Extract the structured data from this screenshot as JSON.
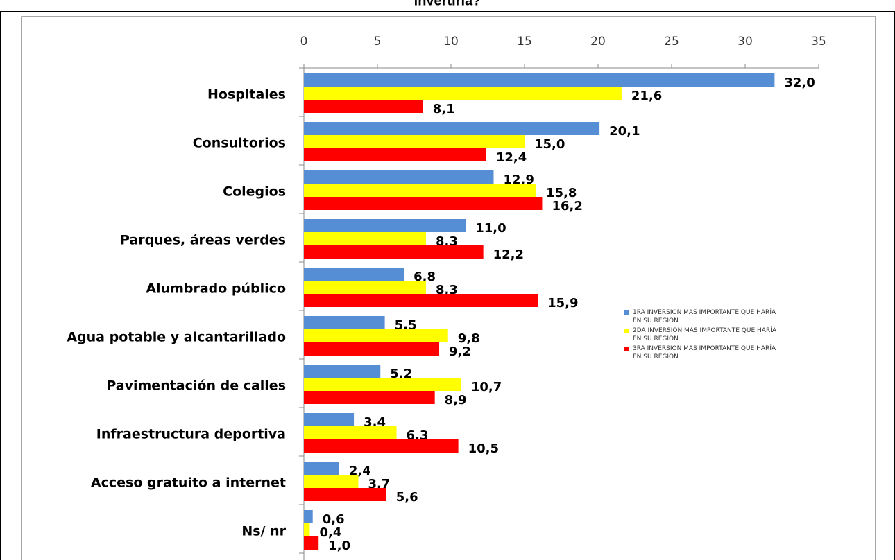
{
  "chart_data": {
    "type": "bar",
    "orientation": "horizontal",
    "title": "invertiría?",
    "categories": [
      "Hospitales",
      "Consultorios",
      "Colegios",
      "Parques, áreas verdes",
      "Alumbrado público",
      "Agua potable y alcantarillado",
      "Pavimentación de calles",
      "Infraestructura deportiva",
      "Acceso gratuito a internet",
      "Ns/ nr"
    ],
    "series": [
      {
        "name": "1RA INVERSION MAS IMPORTANTE QUE HARÍA EN SU REGION",
        "color": "#558ed5",
        "values": [
          32.0,
          20.1,
          12.9,
          11.0,
          6.8,
          5.5,
          5.2,
          3.4,
          2.4,
          0.6
        ],
        "value_labels": [
          "32,0",
          "20,1",
          "12,9",
          "11,0",
          "6,8",
          "5,5",
          "5,2",
          "3,4",
          "2,4",
          "0,6"
        ]
      },
      {
        "name": "2DA INVERSION MAS IMPORTANTE QUE HARÍA EN SU REGION",
        "color": "#ffff00",
        "values": [
          21.6,
          15.0,
          15.8,
          8.3,
          8.3,
          9.8,
          10.7,
          6.3,
          3.7,
          0.4
        ],
        "value_labels": [
          "21,6",
          "15,0",
          "15,8",
          "8,3",
          "8,3",
          "9,8",
          "10,7",
          "6,3",
          "3,7",
          "0,4"
        ]
      },
      {
        "name": "3RA INVERSION MAS IMPORTANTE QUE HARÍA EN SU REGION",
        "color": "#ff0000",
        "values": [
          8.1,
          12.4,
          16.2,
          12.2,
          15.9,
          9.2,
          8.9,
          10.5,
          5.6,
          1.0
        ],
        "value_labels": [
          "8,1",
          "12,4",
          "16,2",
          "12,2",
          "15,9",
          "9,2",
          "8,9",
          "10,5",
          "5,6",
          "1,0"
        ]
      }
    ],
    "xlim": [
      0,
      35
    ],
    "xticks": [
      0,
      5,
      10,
      15,
      20,
      25,
      30,
      35
    ],
    "legend": "right"
  }
}
